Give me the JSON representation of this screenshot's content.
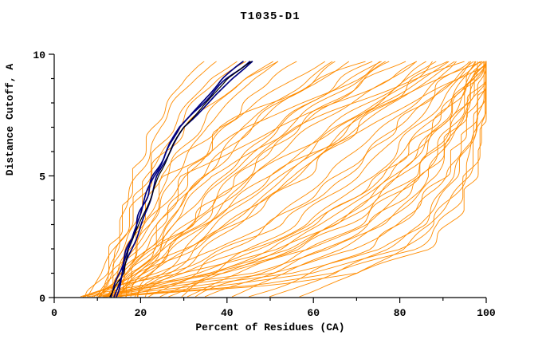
{
  "figure": {
    "title": "T1035-D1"
  },
  "colors": {
    "orange": "#FF8C00",
    "navy": "#000080",
    "black": "#000000",
    "axis": "#000000",
    "background": "#FFFFFF"
  },
  "chart_data": {
    "type": "line",
    "title": "T1035-D1",
    "xlabel": "Percent of Residues (CA)",
    "ylabel": "Distance Cutoff, A",
    "xlim": [
      0,
      100
    ],
    "ylim": [
      0,
      10
    ],
    "xticks": [
      0,
      20,
      40,
      60,
      80,
      100
    ],
    "yticks": [
      0,
      5,
      10
    ],
    "x_minor_step": 10,
    "y_minor_step": 1,
    "grid": false,
    "legend": null,
    "note": "Each curve: percent of CA residues (x) within distance cutoff (y). Orange = predicted models, navy/black = highlighted models. x values sampled at y_grid cutoffs (estimated from plot).",
    "y_grid": [
      0,
      0.5,
      1,
      2,
      3,
      5,
      7,
      9,
      9.7
    ],
    "series": [
      {
        "group": "orange",
        "x": [
          9,
          11,
          12,
          14,
          16,
          19,
          24,
          33,
          38
        ]
      },
      {
        "group": "orange",
        "x": [
          12,
          13,
          14,
          16,
          18,
          22,
          28,
          38,
          44
        ]
      },
      {
        "group": "orange",
        "x": [
          14,
          15,
          16,
          18,
          21,
          26,
          33,
          44,
          50
        ]
      },
      {
        "group": "orange",
        "x": [
          10,
          12,
          13,
          15,
          17,
          21,
          27,
          36,
          42
        ]
      },
      {
        "group": "orange",
        "x": [
          13,
          14,
          16,
          19,
          22,
          28,
          35,
          46,
          52
        ]
      },
      {
        "group": "orange",
        "x": [
          8,
          10,
          11,
          13,
          15,
          18,
          23,
          30,
          35
        ]
      },
      {
        "group": "orange",
        "x": [
          15,
          16,
          18,
          21,
          25,
          31,
          39,
          50,
          56
        ]
      },
      {
        "group": "orange",
        "x": [
          10,
          12,
          14,
          18,
          22,
          30,
          40,
          55,
          62
        ]
      },
      {
        "group": "orange",
        "x": [
          12,
          14,
          16,
          21,
          26,
          35,
          46,
          61,
          68
        ]
      },
      {
        "group": "orange",
        "x": [
          14,
          16,
          19,
          25,
          31,
          42,
          54,
          70,
          76
        ]
      },
      {
        "group": "orange",
        "x": [
          9,
          11,
          14,
          19,
          24,
          34,
          45,
          60,
          66
        ]
      },
      {
        "group": "orange",
        "x": [
          16,
          18,
          21,
          27,
          33,
          44,
          56,
          72,
          78
        ]
      },
      {
        "group": "orange",
        "x": [
          11,
          13,
          16,
          22,
          28,
          39,
          51,
          67,
          73
        ]
      },
      {
        "group": "orange",
        "x": [
          13,
          15,
          18,
          24,
          31,
          43,
          56,
          73,
          80
        ]
      },
      {
        "group": "orange",
        "x": [
          10,
          13,
          17,
          24,
          32,
          46,
          60,
          77,
          83
        ]
      },
      {
        "group": "orange",
        "x": [
          15,
          18,
          22,
          30,
          38,
          52,
          66,
          83,
          88
        ]
      },
      {
        "group": "orange",
        "x": [
          12,
          14,
          16,
          19,
          22,
          26,
          45,
          70,
          78
        ]
      },
      {
        "group": "orange",
        "x": [
          14,
          16,
          18,
          22,
          25,
          30,
          52,
          78,
          85
        ]
      },
      {
        "group": "orange",
        "x": [
          10,
          12,
          14,
          17,
          20,
          24,
          38,
          62,
          72
        ]
      },
      {
        "group": "orange",
        "x": [
          8,
          14,
          20,
          32,
          42,
          58,
          70,
          84,
          90
        ]
      },
      {
        "group": "orange",
        "x": [
          10,
          18,
          26,
          40,
          52,
          68,
          79,
          91,
          95
        ]
      },
      {
        "group": "orange",
        "x": [
          7,
          16,
          24,
          38,
          48,
          64,
          76,
          89,
          93
        ]
      },
      {
        "group": "orange",
        "x": [
          12,
          22,
          32,
          48,
          60,
          76,
          86,
          95,
          98
        ]
      },
      {
        "group": "orange",
        "x": [
          9,
          20,
          30,
          46,
          58,
          74,
          84,
          94,
          97
        ]
      },
      {
        "group": "orange",
        "x": [
          11,
          24,
          36,
          54,
          66,
          81,
          90,
          97,
          99
        ]
      },
      {
        "group": "orange",
        "x": [
          6,
          13,
          19,
          30,
          40,
          56,
          68,
          82,
          88
        ]
      },
      {
        "group": "orange",
        "x": [
          13,
          26,
          38,
          56,
          68,
          83,
          92,
          98,
          100
        ]
      },
      {
        "group": "orange",
        "x": [
          8,
          30,
          50,
          70,
          80,
          90,
          95,
          99,
          100
        ]
      },
      {
        "group": "orange",
        "x": [
          10,
          35,
          55,
          75,
          85,
          93,
          97,
          100,
          100
        ]
      },
      {
        "group": "orange",
        "x": [
          6,
          25,
          45,
          65,
          76,
          87,
          93,
          98,
          100
        ]
      },
      {
        "group": "orange",
        "x": [
          12,
          40,
          60,
          80,
          88,
          95,
          98,
          100,
          100
        ]
      },
      {
        "group": "orange",
        "x": [
          7,
          20,
          38,
          60,
          72,
          85,
          92,
          97,
          99
        ]
      },
      {
        "group": "orange",
        "x": [
          9,
          45,
          65,
          83,
          90,
          96,
          99,
          100,
          100
        ]
      },
      {
        "group": "orange",
        "x": [
          5,
          15,
          30,
          52,
          65,
          80,
          89,
          96,
          99
        ]
      },
      {
        "group": "orange",
        "x": [
          11,
          50,
          70,
          86,
          92,
          97,
          99,
          100,
          100
        ]
      },
      {
        "group": "orange",
        "x": [
          16,
          18,
          20,
          24,
          28,
          36,
          55,
          85,
          95
        ]
      },
      {
        "group": "orange",
        "x": [
          18,
          20,
          23,
          28,
          34,
          46,
          65,
          90,
          98
        ]
      },
      {
        "group": "orange",
        "x": [
          20,
          22,
          25,
          30,
          36,
          50,
          72,
          94,
          100
        ]
      },
      {
        "group": "orange",
        "x": [
          25,
          30,
          36,
          46,
          55,
          70,
          82,
          93,
          97
        ]
      },
      {
        "group": "orange",
        "x": [
          30,
          36,
          43,
          55,
          65,
          79,
          89,
          97,
          100
        ]
      },
      {
        "group": "orange",
        "x": [
          35,
          42,
          50,
          63,
          73,
          86,
          93,
          99,
          100
        ]
      },
      {
        "group": "orange",
        "x": [
          45,
          52,
          60,
          72,
          80,
          91,
          96,
          100,
          100
        ]
      },
      {
        "group": "orange",
        "x": [
          55,
          62,
          70,
          81,
          88,
          95,
          98,
          100,
          100
        ]
      },
      {
        "group": "orange",
        "x": [
          17,
          19,
          22,
          26,
          31,
          40,
          52,
          68,
          75
        ]
      },
      {
        "group": "orange",
        "x": [
          19,
          22,
          26,
          33,
          40,
          54,
          68,
          85,
          91
        ]
      },
      {
        "group": "orange",
        "x": [
          7,
          9,
          11,
          14,
          17,
          22,
          30,
          44,
          52
        ]
      },
      {
        "group": "orange",
        "x": [
          21,
          24,
          28,
          35,
          42,
          56,
          70,
          87,
          93
        ]
      },
      {
        "group": "orange",
        "x": [
          23,
          27,
          32,
          41,
          50,
          66,
          79,
          93,
          97
        ]
      },
      {
        "group": "orange",
        "x": [
          26,
          31,
          38,
          50,
          60,
          76,
          87,
          96,
          99
        ]
      },
      {
        "group": "orange",
        "x": [
          40,
          46,
          54,
          67,
          76,
          88,
          94,
          99,
          100
        ]
      },
      {
        "group": "orange",
        "x": [
          15,
          17,
          19,
          23,
          27,
          34,
          44,
          58,
          65
        ]
      },
      {
        "group": "orange",
        "x": [
          11,
          14,
          18,
          26,
          34,
          50,
          64,
          81,
          87
        ]
      },
      {
        "group": "orange",
        "x": [
          28,
          33,
          40,
          52,
          62,
          78,
          88,
          96,
          99
        ]
      },
      {
        "group": "orange",
        "x": [
          33,
          39,
          47,
          60,
          70,
          84,
          92,
          98,
          100
        ]
      },
      {
        "group": "orange",
        "x": [
          50,
          57,
          65,
          77,
          85,
          93,
          97,
          100,
          100
        ]
      },
      {
        "group": "navy",
        "x": [
          13,
          14,
          15,
          17,
          19,
          23,
          29,
          40,
          45
        ]
      },
      {
        "group": "navy",
        "x": [
          14,
          15,
          16,
          18,
          20,
          24,
          30,
          41,
          46
        ]
      },
      {
        "group": "black",
        "x": [
          13,
          14,
          16,
          17,
          20,
          24,
          30,
          40,
          46
        ]
      },
      {
        "group": "navy",
        "x": [
          14,
          15,
          16,
          17,
          19,
          23,
          29,
          39,
          44
        ]
      }
    ]
  }
}
